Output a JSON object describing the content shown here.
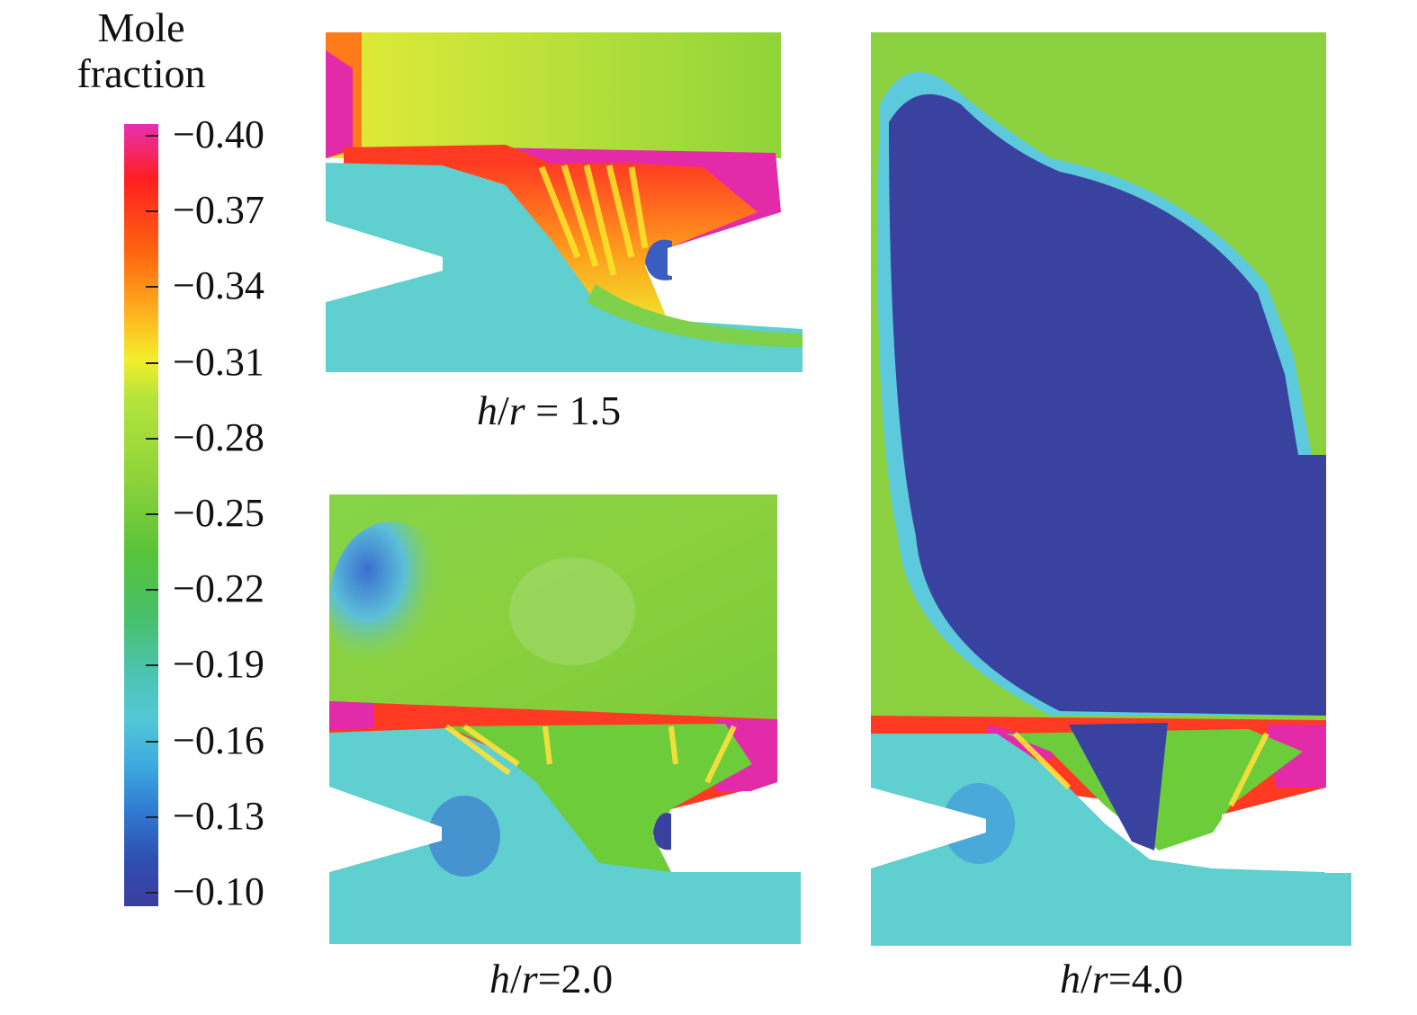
{
  "colorbar": {
    "title_line1": "Mole",
    "title_line2": "fraction",
    "ticks": [
      "−0.40",
      "−0.37",
      "−0.34",
      "−0.31",
      "−0.28",
      "−0.25",
      "−0.22",
      "−0.19",
      "−0.16",
      "−0.13",
      "−0.10"
    ]
  },
  "panels": {
    "p15": {
      "var1": "h",
      "slash": "/",
      "var2": "r",
      "eq": " = 1.5"
    },
    "p20": {
      "var1": "h",
      "slash": "/",
      "var2": "r",
      "eq": "=2.0"
    },
    "p40": {
      "var1": "h",
      "slash": "/",
      "var2": "r",
      "eq": "=4.0"
    }
  },
  "colors": {
    "magenta": "#e32aa8",
    "red": "#ff2020",
    "orange": "#ff8a1a",
    "yellow": "#e8ec2c",
    "yellowgreen": "#a9dc3a",
    "green": "#6ccc3a",
    "teal": "#5fcfc8",
    "cyan": "#5cc9dc",
    "blue": "#3a8fe0",
    "darkblue": "#3a42a0"
  }
}
